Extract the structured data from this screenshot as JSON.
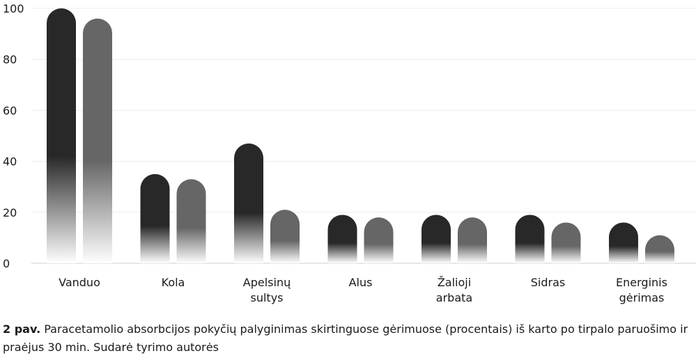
{
  "chart_data": {
    "type": "bar",
    "categories": [
      [
        "Vanduo"
      ],
      [
        "Kola"
      ],
      [
        "Apelsinų",
        "sultys"
      ],
      [
        "Alus"
      ],
      [
        "Žalioji",
        "arbata"
      ],
      [
        "Sidras"
      ],
      [
        "Energinis",
        "gėrimas"
      ]
    ],
    "series": [
      {
        "values": [
          100,
          35,
          47,
          19,
          19,
          19,
          16
        ]
      },
      {
        "values": [
          96,
          33,
          21,
          18,
          18,
          16,
          11
        ]
      }
    ],
    "ylim": [
      0,
      100
    ],
    "yticks": [
      0,
      20,
      40,
      60,
      80,
      100
    ],
    "grid": true,
    "colors": [
      "#282828",
      "#666666"
    ]
  },
  "caption": {
    "label": "2 pav.",
    "text": "Paracetamolio absorbcijos pokyčių palyginimas skirtinguose gėrimuose (procentais) iš karto po tirpalo paruošimo ir praėjus 30 min. Sudarė tyrimo autorės"
  }
}
